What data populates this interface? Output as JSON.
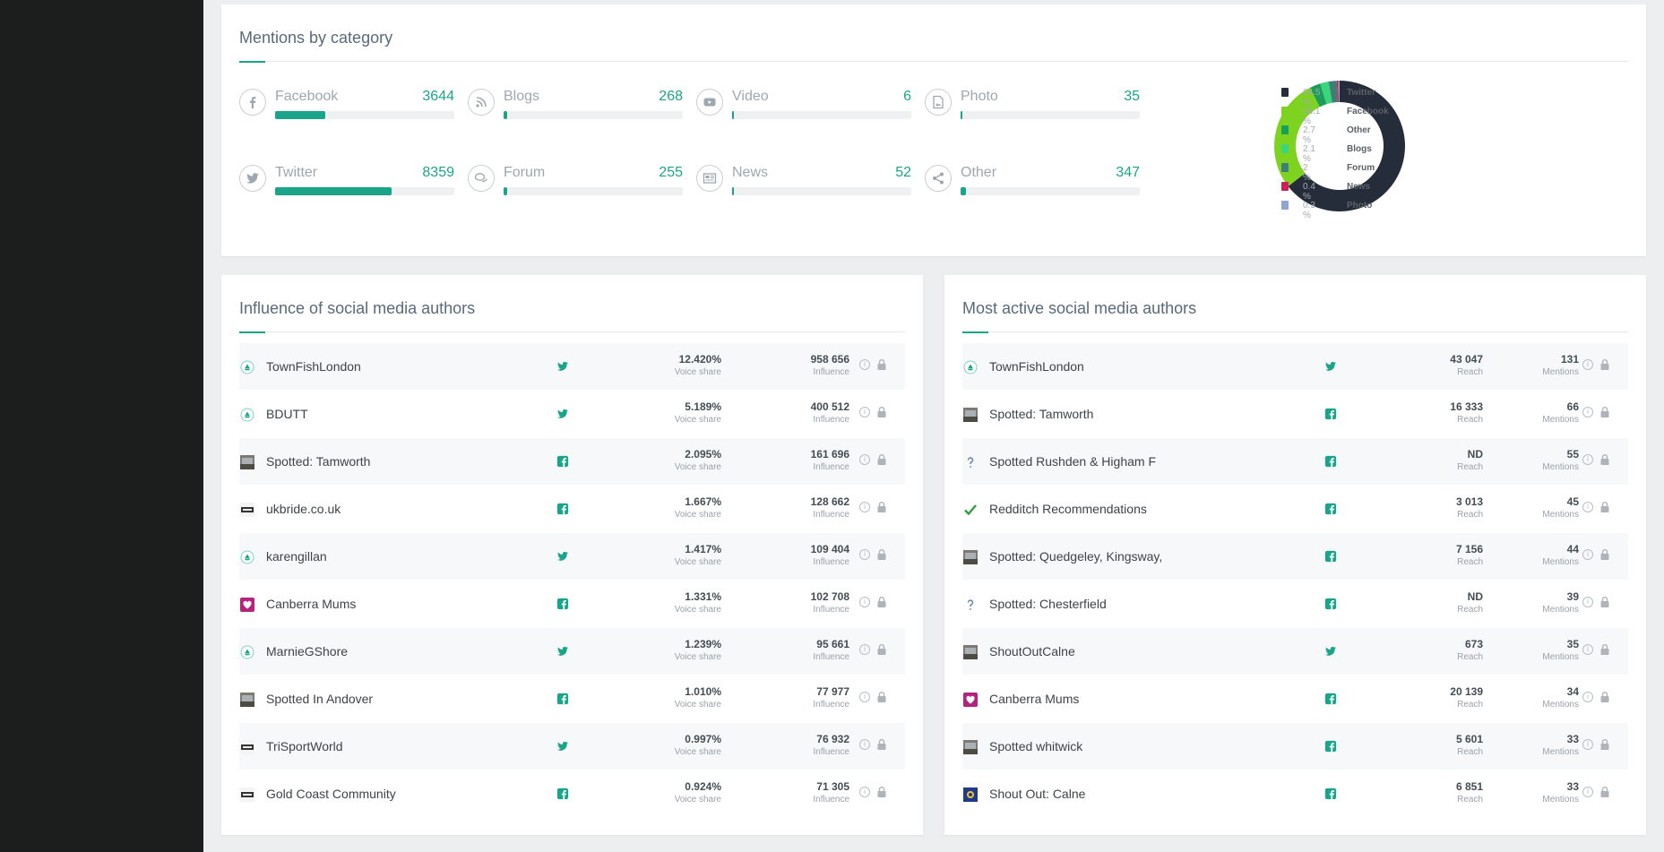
{
  "colors": {
    "accent": "#1aa58a",
    "twitter": "#1aa58a",
    "facebook": "#1aa58a",
    "sidebar": "#1c1d1d"
  },
  "category_panel": {
    "title": "Mentions by category",
    "tiles": [
      {
        "label": "Facebook",
        "value": "3644",
        "icon": "facebook-icon",
        "fill_fraction": 0.28
      },
      {
        "label": "Blogs",
        "value": "268",
        "icon": "rss-icon",
        "fill_fraction": 0.02
      },
      {
        "label": "Video",
        "value": "6",
        "icon": "youtube-icon",
        "fill_fraction": 0.0
      },
      {
        "label": "Photo",
        "value": "35",
        "icon": "photo-icon",
        "fill_fraction": 0.01
      },
      {
        "label": "Twitter",
        "value": "8359",
        "icon": "twitter-icon",
        "fill_fraction": 0.65
      },
      {
        "label": "Forum",
        "value": "255",
        "icon": "forum-icon",
        "fill_fraction": 0.02
      },
      {
        "label": "News",
        "value": "52",
        "icon": "news-icon",
        "fill_fraction": 0.005
      },
      {
        "label": "Other",
        "value": "347",
        "icon": "share-icon",
        "fill_fraction": 0.03
      }
    ]
  },
  "chart_data": {
    "type": "pie",
    "categories": [
      "Twitter",
      "Facebook",
      "Other",
      "Blogs",
      "Forum",
      "News",
      "Photo"
    ],
    "values": [
      64.5,
      28.1,
      2.7,
      2.1,
      2,
      0.4,
      0.3
    ],
    "labels": [
      "64.5 %",
      "28.1 %",
      "2.7 %",
      "2.1 %",
      "2 %",
      "0.4 %",
      "0.3 %"
    ],
    "colors": [
      "#262d3a",
      "#7ed321",
      "#1a9e58",
      "#3ad67e",
      "#3d8073",
      "#cc1f59",
      "#8fa4cf"
    ],
    "legend_position": "right"
  },
  "influence_panel": {
    "title": "Influence of social media authors",
    "col1_caption": "Voice share",
    "col2_caption": "Influence",
    "rows": [
      {
        "name": "TownFishLondon",
        "network": "twitter",
        "avatar": "default-avatar-icon",
        "v1": "12.420%",
        "v2": "958 656"
      },
      {
        "name": "BDUTT",
        "network": "twitter",
        "avatar": "default-avatar-icon",
        "v1": "5.189%",
        "v2": "400 512"
      },
      {
        "name": "Spotted: Tamworth",
        "network": "facebook",
        "avatar": "photo-avatar",
        "v1": "2.095%",
        "v2": "161 696"
      },
      {
        "name": "ukbride.co.uk",
        "network": "facebook",
        "avatar": "logo-avatar",
        "v1": "1.667%",
        "v2": "128 662"
      },
      {
        "name": "karengillan",
        "network": "twitter",
        "avatar": "default-avatar-icon",
        "v1": "1.417%",
        "v2": "109 404"
      },
      {
        "name": "Canberra Mums",
        "network": "facebook",
        "avatar": "heart-avatar",
        "v1": "1.331%",
        "v2": "102 708"
      },
      {
        "name": "MarnieGShore",
        "network": "twitter",
        "avatar": "default-avatar-icon",
        "v1": "1.239%",
        "v2": "95 661"
      },
      {
        "name": "Spotted In Andover",
        "network": "facebook",
        "avatar": "photo-avatar",
        "v1": "1.010%",
        "v2": "77 977"
      },
      {
        "name": "TriSportWorld",
        "network": "twitter",
        "avatar": "logo-avatar",
        "v1": "0.997%",
        "v2": "76 932"
      },
      {
        "name": "Gold Coast Community",
        "network": "facebook",
        "avatar": "logo-avatar",
        "v1": "0.924%",
        "v2": "71 305"
      }
    ]
  },
  "active_panel": {
    "title": "Most active social media authors",
    "col1_caption": "Reach",
    "col2_caption": "Mentions",
    "rows": [
      {
        "name": "TownFishLondon",
        "network": "twitter",
        "avatar": "default-avatar-icon",
        "v1": "43 047",
        "v2": "131"
      },
      {
        "name": "Spotted: Tamworth",
        "network": "facebook",
        "avatar": "photo-avatar",
        "v1": "16 333",
        "v2": "66"
      },
      {
        "name": "Spotted Rushden & Higham F",
        "network": "facebook",
        "avatar": "question-avatar",
        "v1": "ND",
        "v2": "55"
      },
      {
        "name": "Redditch Recommendations",
        "network": "facebook",
        "avatar": "checkmark-avatar",
        "v1": "3 013",
        "v2": "45"
      },
      {
        "name": "Spotted: Quedgeley, Kingsway,",
        "network": "facebook",
        "avatar": "photo-avatar",
        "v1": "7 156",
        "v2": "44"
      },
      {
        "name": "Spotted: Chesterfield",
        "network": "facebook",
        "avatar": "question-avatar",
        "v1": "ND",
        "v2": "39"
      },
      {
        "name": "ShoutOutCalne",
        "network": "twitter",
        "avatar": "photo-avatar",
        "v1": "673",
        "v2": "35"
      },
      {
        "name": "Canberra Mums",
        "network": "facebook",
        "avatar": "heart-avatar",
        "v1": "20 139",
        "v2": "34"
      },
      {
        "name": "Spotted whitwick",
        "network": "facebook",
        "avatar": "photo-avatar",
        "v1": "5 601",
        "v2": "33"
      },
      {
        "name": "Shout Out: Calne",
        "network": "facebook",
        "avatar": "flag-avatar",
        "v1": "6 851",
        "v2": "33"
      }
    ]
  }
}
